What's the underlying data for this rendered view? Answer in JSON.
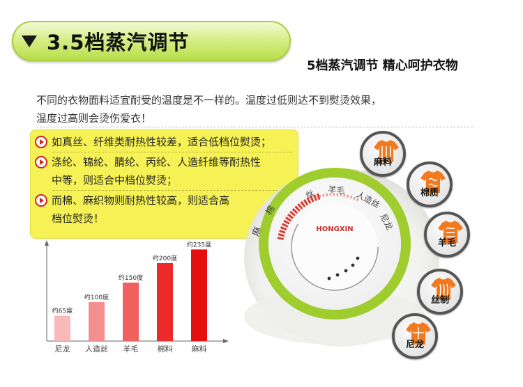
{
  "header": {
    "title": "3.5档蒸汽调节",
    "subtitle": "5档蒸汽调节  精心呵护衣物"
  },
  "intro": {
    "lines": [
      "不同的衣物面料适宜耐受的温度是不一样的。温度过低则达不到熨烫效果，",
      "温度过高则会烫伤爱衣！"
    ]
  },
  "tips": [
    {
      "lines": [
        "如真丝、纤维类耐热性较差，适合低档位熨烫；"
      ]
    },
    {
      "lines": [
        "涤纶、锦纶、腈纶、丙纶、人造纤维等耐热性",
        "中等，则适合中档位熨烫；"
      ]
    },
    {
      "lines": [
        "而棉、麻织物则耐热性较高，则适合高",
        "档位熨烫！"
      ]
    }
  ],
  "dial": {
    "brand": "HONGXIN",
    "marks": [
      "丝",
      "羊毛",
      "人造丝",
      "尼龙"
    ],
    "marks_left": [
      "麻",
      "棉"
    ]
  },
  "badges": [
    "麻料",
    "棉质",
    "羊毛",
    "丝制",
    "尼龙"
  ],
  "chart_data": {
    "type": "bar",
    "categories": [
      "尼龙",
      "人造丝",
      "羊毛",
      "棉料",
      "麻料"
    ],
    "values": [
      65,
      100,
      150,
      200,
      235
    ],
    "data_labels": [
      "约65度",
      "约100度",
      "约150度",
      "约200度",
      "约235度"
    ],
    "ylim": [
      0,
      250
    ],
    "colors": [
      "#f8b9b9",
      "#f58f8f",
      "#f0605f",
      "#ec2a2a",
      "#e60f0f"
    ]
  }
}
